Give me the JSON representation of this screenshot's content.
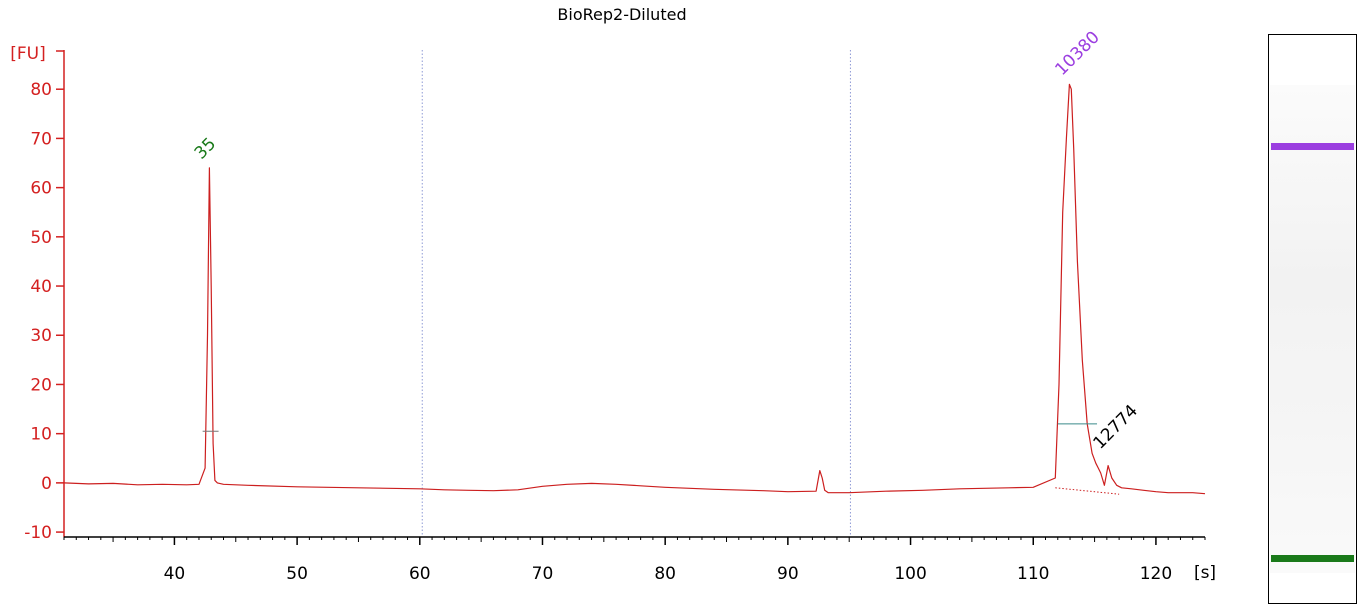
{
  "chart_data": {
    "type": "line",
    "title": "BioRep2-Diluted",
    "y_unit": "[FU]",
    "x_unit": "[s]",
    "xlim": [
      31,
      124
    ],
    "ylim": [
      -11,
      90
    ],
    "x_ticks": [
      40,
      50,
      60,
      70,
      80,
      90,
      100,
      110,
      120
    ],
    "y_ticks": [
      -10,
      0,
      10,
      20,
      30,
      40,
      50,
      60,
      70,
      80
    ],
    "marker_lines": [
      60.2,
      95.1
    ],
    "series": [
      {
        "x": [
          31,
          33,
          35,
          37,
          39,
          41,
          42,
          42.5,
          42.7,
          42.85,
          43.0,
          43.15,
          43.3,
          43.5,
          44,
          46,
          50,
          55,
          60,
          62,
          64,
          66,
          68,
          70,
          72,
          74,
          76,
          78,
          80,
          84,
          88,
          90,
          92.3,
          92.6,
          92.8,
          93.0,
          93.3,
          95,
          98,
          101,
          104,
          108,
          110,
          111.8,
          112.1,
          112.4,
          112.7,
          112.95,
          113.1,
          113.3,
          113.6,
          114.0,
          114.4,
          114.8,
          115.1,
          115.3,
          115.5,
          115.8,
          116.1,
          116.4,
          116.8,
          117.2,
          118,
          119,
          120,
          121,
          122,
          123,
          124
        ],
        "y": [
          0,
          -0.2,
          -0.1,
          -0.4,
          -0.3,
          -0.4,
          -0.3,
          3,
          30,
          64,
          40,
          8,
          0.5,
          0,
          -0.3,
          -0.5,
          -0.8,
          -1.0,
          -1.2,
          -1.4,
          -1.5,
          -1.6,
          -1.4,
          -0.7,
          -0.3,
          -0.1,
          -0.3,
          -0.6,
          -0.9,
          -1.3,
          -1.6,
          -1.8,
          -1.7,
          2.5,
          1.0,
          -1.5,
          -2.0,
          -2.0,
          -1.7,
          -1.5,
          -1.2,
          -1.0,
          -0.9,
          1.0,
          20,
          55,
          70,
          81,
          80,
          68,
          45,
          25,
          12,
          6,
          4,
          3,
          2,
          -0.5,
          3.5,
          1.0,
          -0.5,
          -1.0,
          -1.2,
          -1.5,
          -1.8,
          -2.0,
          -2.0,
          -2.0,
          -2.2
        ]
      }
    ],
    "annotations": [
      {
        "text": "35",
        "x": 42.85,
        "y": 64,
        "color": "#1a7a1a"
      },
      {
        "text": "10380",
        "x": 113.0,
        "y": 81,
        "color": "#9b3ee0"
      },
      {
        "text": "12774",
        "x": 114.8,
        "y": 12,
        "color": "#000000"
      }
    ],
    "peak_bars": [
      {
        "x1": 42.3,
        "x2": 43.6,
        "y": 10.5
      },
      {
        "x1": 112.0,
        "x2": 115.2,
        "y": 12
      }
    ],
    "colors": {
      "trace": "#cc1f1f",
      "axis_y": "#d42020",
      "marker_line": "#8f9ad6",
      "ladder_marker": "#9b3ee0",
      "lower_marker": "#1a7a1a"
    }
  },
  "gel": {
    "bands": [
      {
        "name": "upper-marker",
        "position": 0.875,
        "color": "#9b3ee0"
      },
      {
        "name": "lower-marker",
        "position": 0.03,
        "color": "#1a7a1a"
      }
    ]
  }
}
